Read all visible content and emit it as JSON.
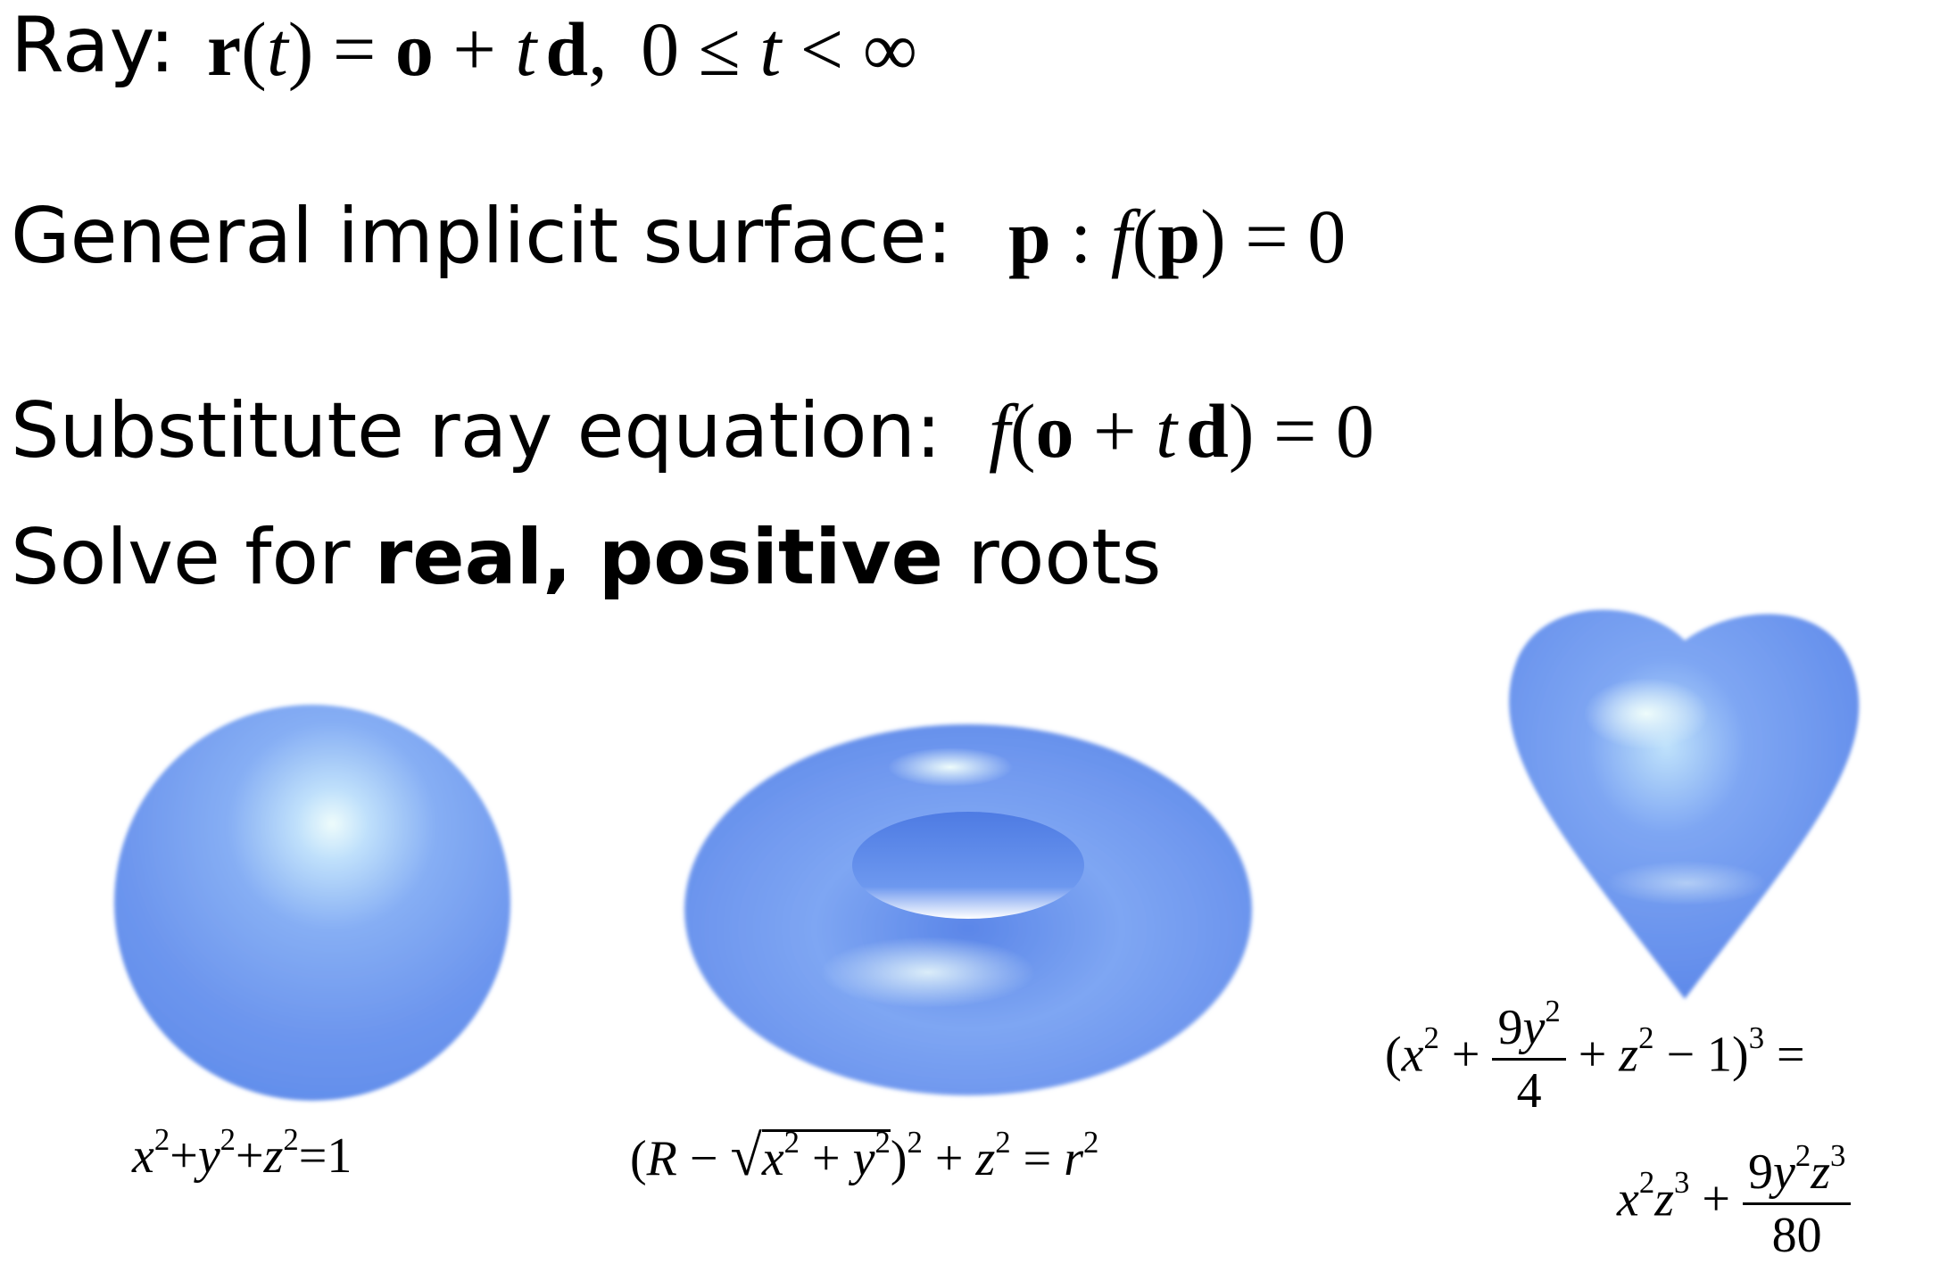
{
  "lines": {
    "ray_label": "Ray:",
    "ray_eq": {
      "r": "r",
      "t": "t",
      "eq": "=",
      "o": "o",
      "plus": "+",
      "d": "d",
      "zero": "0",
      "le": "≤",
      "lt": "<",
      "inf": "∞",
      "comma": ",",
      "lp": "(",
      "rp": ")"
    },
    "implicit_label": "General implicit surface:",
    "implicit_eq": {
      "p": "p",
      "colon": ":",
      "f": "f",
      "lp": "(",
      "rp": ")",
      "eq": "=",
      "zero": "0"
    },
    "substitute_label": "Substitute ray equation:",
    "substitute_eq": {
      "f": "f",
      "lp": "(",
      "o": "o",
      "plus": "+",
      "t": "t",
      "d": "d",
      "rp": ")",
      "eq": "=",
      "zero": "0"
    },
    "solve_prefix": "Solve for ",
    "solve_bold": "real, positive",
    "solve_suffix": " roots"
  },
  "figures": {
    "sphere_caption": {
      "x": "x",
      "y": "y",
      "z": "z",
      "two": "2",
      "plus": "+",
      "eq": "=",
      "one": "1"
    },
    "torus_caption": {
      "R": "R",
      "minus": "−",
      "x": "x",
      "y": "y",
      "z": "z",
      "r": "r",
      "two": "2",
      "plus": "+",
      "eq": "=",
      "lp": "(",
      "rp": ")",
      "root": "√"
    },
    "heart_caption": {
      "lp": "(",
      "x": "x",
      "y": "y",
      "z": "z",
      "two": "2",
      "three": "3",
      "plus": "+",
      "minus": "−",
      "one": "1",
      "rp": ")",
      "eq": "=",
      "nine": "9",
      "four": "4",
      "eighty": "80"
    }
  },
  "colors": {
    "surface": "#6e9af0",
    "highlight": "#e8fbfb",
    "shadow": "#4f7fe3"
  }
}
